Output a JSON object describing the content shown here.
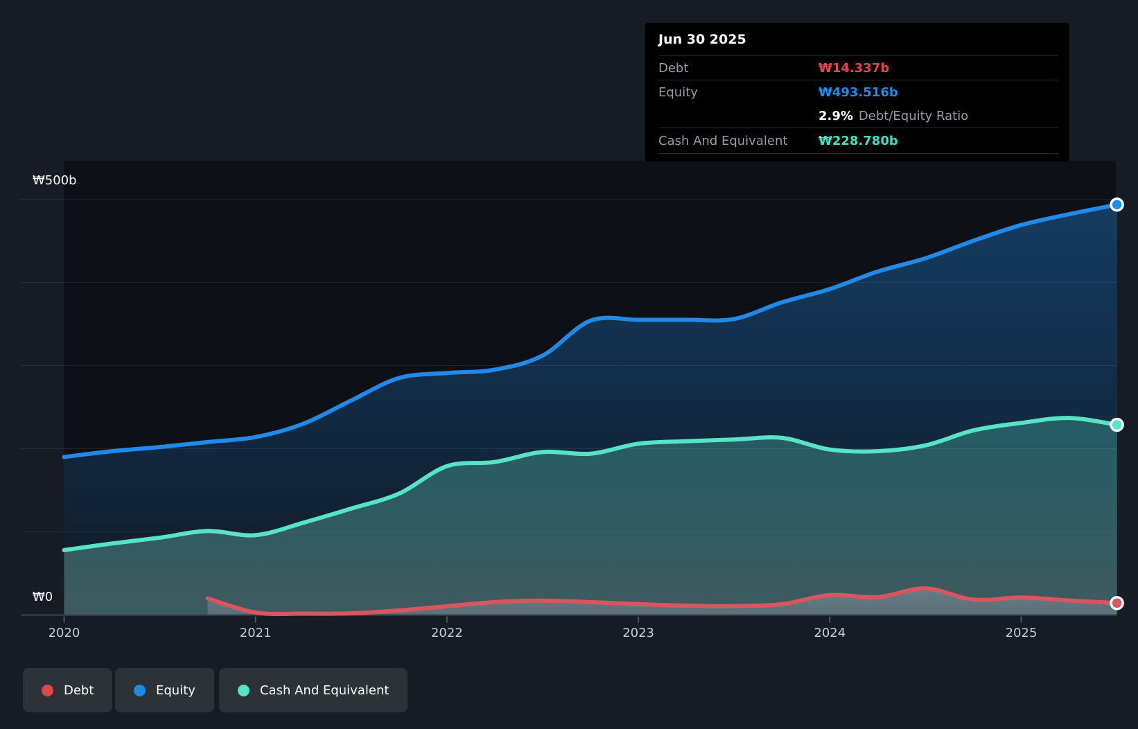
{
  "tooltip": {
    "date": "Jun 30 2025",
    "debt_label": "Debt",
    "debt_value": "₩14.337b",
    "equity_label": "Equity",
    "equity_value": "₩493.516b",
    "ratio_value": "2.9%",
    "ratio_label": "Debt/Equity Ratio",
    "cash_label": "Cash And Equivalent",
    "cash_value": "₩228.780b"
  },
  "y_axis": {
    "top_label": "₩500b",
    "bottom_label": "₩0"
  },
  "x_axis": {
    "labels": [
      "2020",
      "2021",
      "2022",
      "2023",
      "2024",
      "2025"
    ]
  },
  "legend": [
    {
      "label": "Debt",
      "color": "#e0484e"
    },
    {
      "label": "Equity",
      "color": "#2189e8"
    },
    {
      "label": "Cash And Equivalent",
      "color": "#57e3c5"
    }
  ],
  "colors": {
    "background": "#171b24",
    "plot_background": "#0d1117",
    "debt": "#e2484e",
    "equity": "#1e8ce8",
    "cash": "#45e0bd",
    "axis": "#3a4150",
    "gridline": "rgba(255,255,255,0.08)"
  },
  "chart_data": {
    "type": "area",
    "title": "Debt to Equity History and Analysis",
    "x_unit": "year",
    "y_unit": "₩ billions",
    "xlim": [
      2020,
      2025.5
    ],
    "ylim": [
      0,
      500
    ],
    "gridlines": [
      100,
      200,
      300,
      400,
      500
    ],
    "legend_position": "bottom-left",
    "x": [
      2020,
      2020.25,
      2020.5,
      2020.75,
      2021,
      2021.25,
      2021.5,
      2021.75,
      2022,
      2022.25,
      2022.5,
      2022.75,
      2023,
      2023.25,
      2023.5,
      2023.75,
      2024,
      2024.25,
      2024.5,
      2024.75,
      2025,
      2025.25,
      2025.5
    ],
    "series": [
      {
        "name": "Equity",
        "color": "#2189e8",
        "end_value": 493.516,
        "values": [
          190,
          197,
          202,
          208,
          214,
          230,
          258,
          285,
          291,
          295,
          312,
          354,
          355,
          355,
          356,
          376,
          392,
          413,
          429,
          450,
          469,
          482,
          493.516
        ]
      },
      {
        "name": "Cash And Equivalent",
        "color": "#57e3c5",
        "end_value": 228.78,
        "values": [
          78,
          86,
          93,
          101,
          96,
          111,
          128,
          146,
          179,
          184,
          196,
          194,
          206,
          209,
          211,
          213,
          199,
          197,
          204,
          222,
          231,
          237,
          228.78
        ]
      },
      {
        "name": "Debt",
        "color": "#d8575f",
        "end_value": 14.337,
        "values": [
          null,
          null,
          null,
          20,
          3,
          1.7,
          2,
          5.5,
          10.5,
          15.5,
          17.3,
          15.5,
          13,
          11.2,
          10.8,
          13,
          24,
          21.5,
          32,
          18.5,
          21,
          17.5,
          14.337
        ]
      }
    ]
  }
}
